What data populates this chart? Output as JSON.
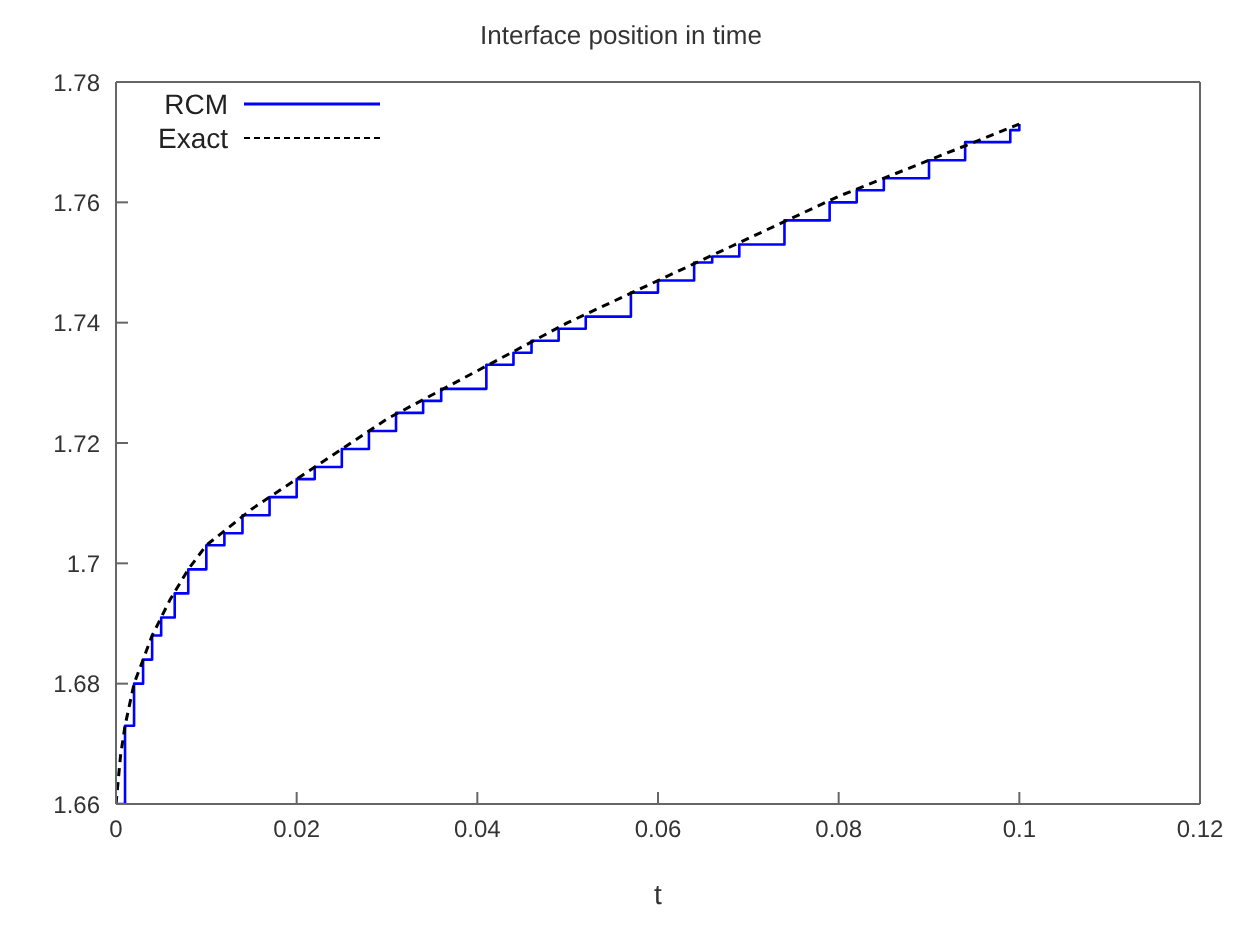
{
  "chart_data": {
    "type": "line",
    "title": "Interface position in time",
    "xlabel": "t",
    "xlim": [
      0,
      0.12
    ],
    "xticks": [
      0,
      0.02,
      0.04,
      0.06,
      0.08,
      0.1,
      0.12
    ],
    "ylim": [
      1.66,
      1.78
    ],
    "yticks": [
      1.66,
      1.68,
      1.7,
      1.72,
      1.74,
      1.76,
      1.78
    ],
    "legend": "top left",
    "marker": "none",
    "series": [
      {
        "name": "RCM",
        "type": "step",
        "color": "#0000ff",
        "line_style": "solid",
        "x": [
          0,
          0.001,
          0.002,
          0.003,
          0.004,
          0.005,
          0.0065,
          0.008,
          0.01,
          0.012,
          0.014,
          0.017,
          0.02,
          0.022,
          0.025,
          0.028,
          0.031,
          0.034,
          0.036,
          0.041,
          0.044,
          0.046,
          0.049,
          0.052,
          0.057,
          0.06,
          0.064,
          0.066,
          0.069,
          0.074,
          0.079,
          0.082,
          0.085,
          0.09,
          0.094,
          0.099,
          0.1
        ],
        "values": [
          1.66,
          1.673,
          1.68,
          1.684,
          1.688,
          1.691,
          1.695,
          1.699,
          1.703,
          1.705,
          1.708,
          1.711,
          1.714,
          1.716,
          1.719,
          1.722,
          1.725,
          1.727,
          1.729,
          1.733,
          1.735,
          1.737,
          1.739,
          1.741,
          1.745,
          1.747,
          1.75,
          1.751,
          1.753,
          1.757,
          1.76,
          1.762,
          1.764,
          1.767,
          1.77,
          1.772,
          1.773
        ]
      },
      {
        "name": "Exact",
        "color": "#000000",
        "line_style": "dashed",
        "x": [
          0,
          0.0005,
          0.001,
          0.002,
          0.004,
          0.006,
          0.008,
          0.01,
          0.015,
          0.02,
          0.03,
          0.04,
          0.05,
          0.06,
          0.07,
          0.08,
          0.09,
          0.1
        ],
        "values": [
          1.66,
          1.668,
          1.673,
          1.68,
          1.688,
          1.694,
          1.699,
          1.703,
          1.709,
          1.714,
          1.724,
          1.732,
          1.74,
          1.747,
          1.754,
          1.761,
          1.767,
          1.773
        ]
      }
    ]
  }
}
